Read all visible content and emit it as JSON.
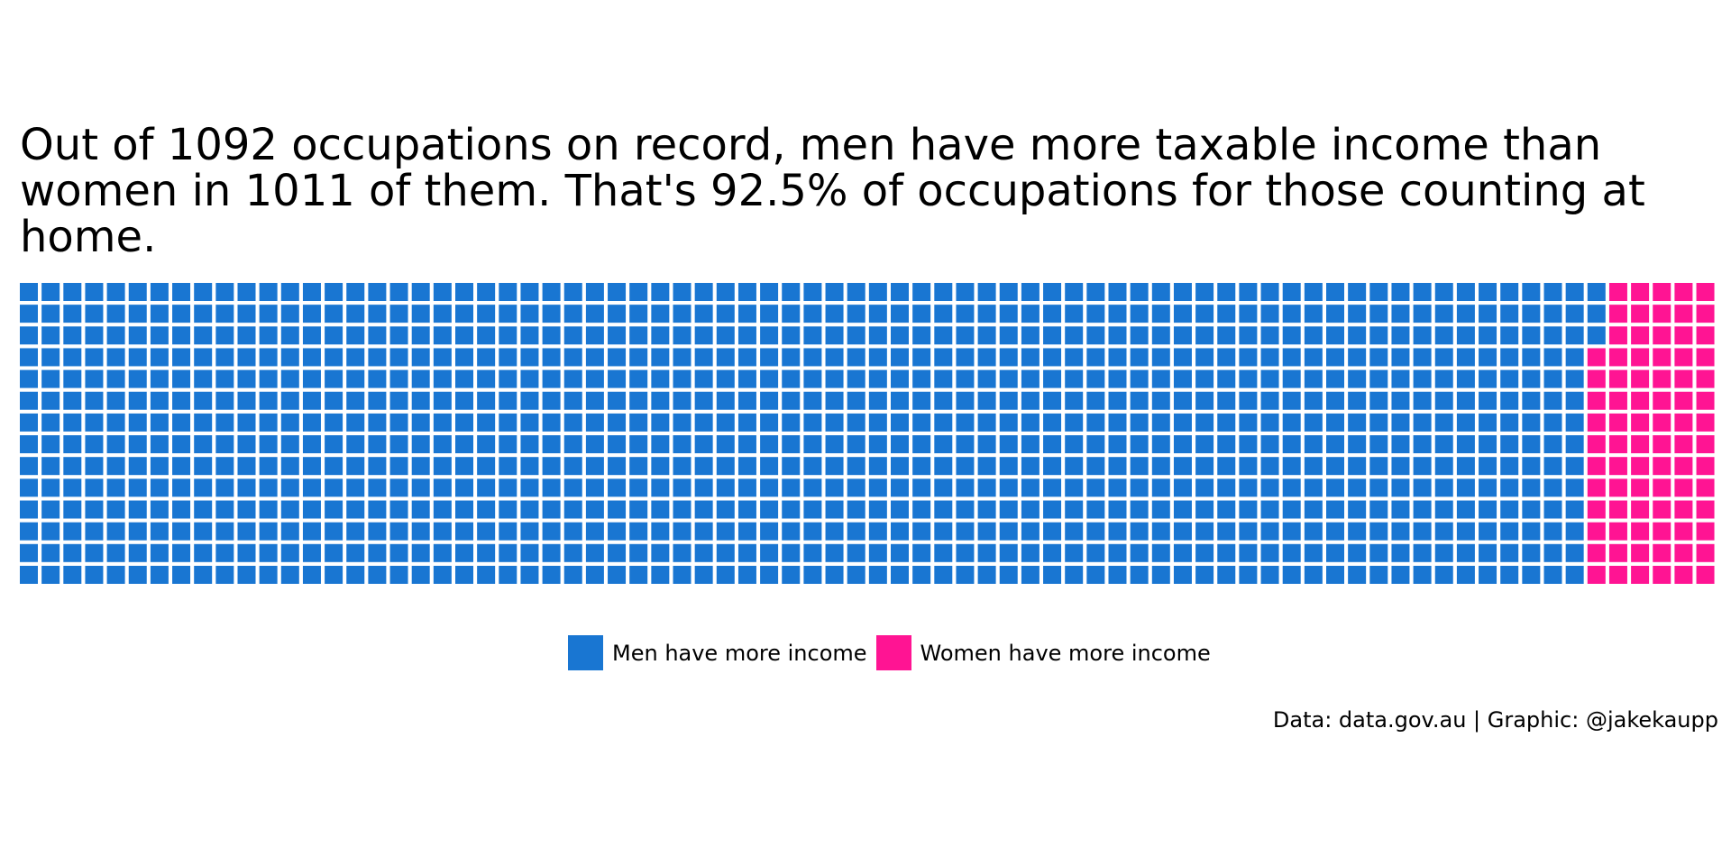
{
  "colors": {
    "men": "#1976D2",
    "women": "#FF1493"
  },
  "chart_data": {
    "type": "waffle",
    "title": "Out of 1092 occupations on record, men have more taxable income than women in 1011 of them. That's 92.5% of occupations for those counting at home.",
    "categories": [
      "Men have more income",
      "Women have more income"
    ],
    "values": [
      1011,
      81
    ],
    "total": 1092,
    "rows": 14,
    "columns": 78,
    "legend_position": "bottom",
    "caption": "Data: data.gov.au | Graphic: @jakekaupp"
  }
}
